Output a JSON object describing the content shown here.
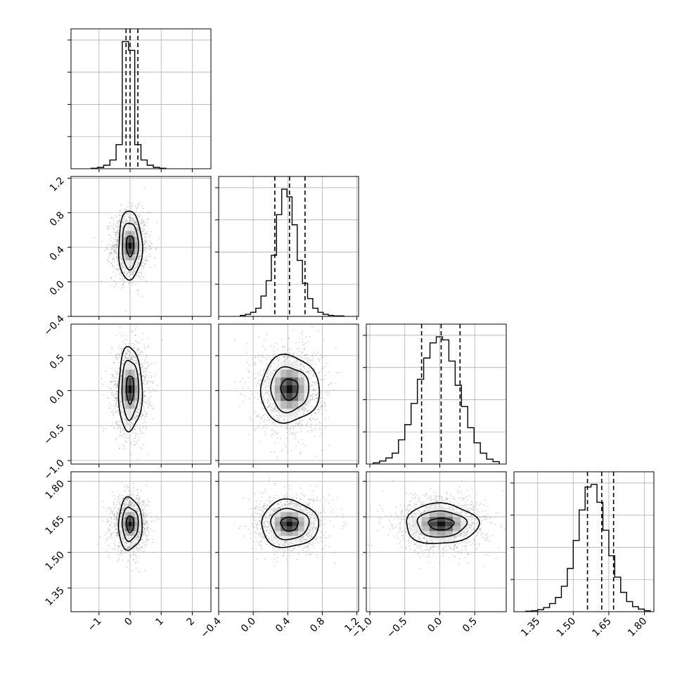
{
  "chart_data": {
    "type": "corner",
    "parameters": [
      {
        "range": [
          -1.9,
          2.6
        ],
        "ticks": [
          -1,
          0,
          1,
          2
        ],
        "tick_labels": [
          "−1",
          "0",
          "1",
          "2"
        ],
        "mean": 0.0,
        "sd": 0.25,
        "quantiles": [
          -0.13,
          0.0,
          0.25
        ]
      },
      {
        "range": [
          -0.4,
          1.22
        ],
        "ticks": [
          -0.4,
          0.0,
          0.4,
          0.8,
          1.2
        ],
        "tick_labels": [
          "−0.4",
          "0.0",
          "0.4",
          "0.8",
          "1.2"
        ],
        "mean": 0.42,
        "sd": 0.17,
        "quantiles": [
          0.25,
          0.42,
          0.6
        ]
      },
      {
        "range": [
          -1.05,
          0.95
        ],
        "ticks": [
          -1.0,
          -0.5,
          0.0,
          0.5
        ],
        "tick_labels": [
          "−1.0",
          "−0.5",
          "0.0",
          "0.5"
        ],
        "mean": 0.02,
        "sd": 0.28,
        "quantiles": [
          -0.26,
          0.02,
          0.29
        ]
      },
      {
        "range": [
          1.25,
          1.84
        ],
        "ticks": [
          1.35,
          1.5,
          1.65,
          1.8
        ],
        "tick_labels": [
          "1.35",
          "1.50",
          "1.65",
          "1.80"
        ],
        "mean": 1.62,
        "sd": 0.05,
        "quantiles": [
          1.56,
          1.62,
          1.67
        ]
      }
    ],
    "histograms": [
      {
        "param": 0,
        "bin_edges": [
          -1.25,
          -1.05,
          -0.85,
          -0.65,
          -0.45,
          -0.25,
          -0.05,
          0.15,
          0.35,
          0.55,
          0.75,
          0.95,
          1.15
        ],
        "counts": [
          1,
          3,
          8,
          20,
          55,
          290,
          270,
          55,
          20,
          8,
          3,
          1
        ]
      },
      {
        "param": 1,
        "bin_edges": [
          -0.15,
          -0.09,
          -0.03,
          0.03,
          0.09,
          0.15,
          0.21,
          0.27,
          0.33,
          0.39,
          0.45,
          0.51,
          0.57,
          0.63,
          0.69,
          0.75,
          0.81,
          0.87,
          0.93,
          0.99,
          1.05
        ],
        "counts": [
          2,
          4,
          8,
          16,
          40,
          70,
          120,
          200,
          250,
          235,
          180,
          110,
          65,
          35,
          16,
          8,
          4,
          2,
          1,
          1
        ]
      },
      {
        "param": 2,
        "bin_edges": [
          -0.95,
          -0.86,
          -0.77,
          -0.68,
          -0.59,
          -0.5,
          -0.41,
          -0.32,
          -0.23,
          -0.14,
          -0.05,
          0.04,
          0.13,
          0.22,
          0.31,
          0.4,
          0.49,
          0.58,
          0.67,
          0.76,
          0.85
        ],
        "counts": [
          2,
          5,
          10,
          18,
          40,
          65,
          100,
          140,
          175,
          200,
          210,
          205,
          170,
          130,
          95,
          60,
          35,
          18,
          8,
          4
        ]
      },
      {
        "param": 3,
        "bin_edges": [
          1.3,
          1.325,
          1.35,
          1.375,
          1.4,
          1.425,
          1.45,
          1.475,
          1.5,
          1.525,
          1.55,
          1.575,
          1.6,
          1.625,
          1.65,
          1.675,
          1.7,
          1.725,
          1.75,
          1.775,
          1.8,
          1.825
        ],
        "counts": [
          1,
          2,
          4,
          8,
          16,
          28,
          50,
          85,
          140,
          200,
          245,
          250,
          215,
          160,
          110,
          68,
          38,
          20,
          10,
          5,
          2
        ]
      }
    ],
    "contours": [
      {
        "x": 0,
        "y": 1,
        "levels": [
          {
            "dx": 0.12,
            "dy": 0.12
          },
          {
            "dx": 0.26,
            "dy": 0.27
          },
          {
            "dx": 0.38,
            "dy": 0.4
          }
        ]
      },
      {
        "x": 0,
        "y": 2,
        "levels": [
          {
            "dx": 0.12,
            "dy": 0.2
          },
          {
            "dx": 0.27,
            "dy": 0.42
          },
          {
            "dx": 0.38,
            "dy": 0.6
          }
        ]
      },
      {
        "x": 0,
        "y": 3,
        "levels": [
          {
            "dx": 0.12,
            "dy": 0.035
          },
          {
            "dx": 0.26,
            "dy": 0.07
          },
          {
            "dx": 0.38,
            "dy": 0.11
          }
        ]
      },
      {
        "x": 1,
        "y": 2,
        "levels": [
          {
            "dx": 0.1,
            "dy": 0.15
          },
          {
            "dx": 0.22,
            "dy": 0.32
          },
          {
            "dx": 0.34,
            "dy": 0.48
          }
        ]
      },
      {
        "x": 1,
        "y": 3,
        "levels": [
          {
            "dx": 0.1,
            "dy": 0.03
          },
          {
            "dx": 0.22,
            "dy": 0.065
          },
          {
            "dx": 0.33,
            "dy": 0.1
          }
        ]
      },
      {
        "x": 2,
        "y": 3,
        "levels": [
          {
            "dx": 0.18,
            "dy": 0.025
          },
          {
            "dx": 0.35,
            "dy": 0.055
          },
          {
            "dx": 0.52,
            "dy": 0.085
          }
        ]
      }
    ],
    "grid": true,
    "colors": {
      "points": "#9a9a9a",
      "density": "#000000",
      "lines": "#000000"
    }
  }
}
